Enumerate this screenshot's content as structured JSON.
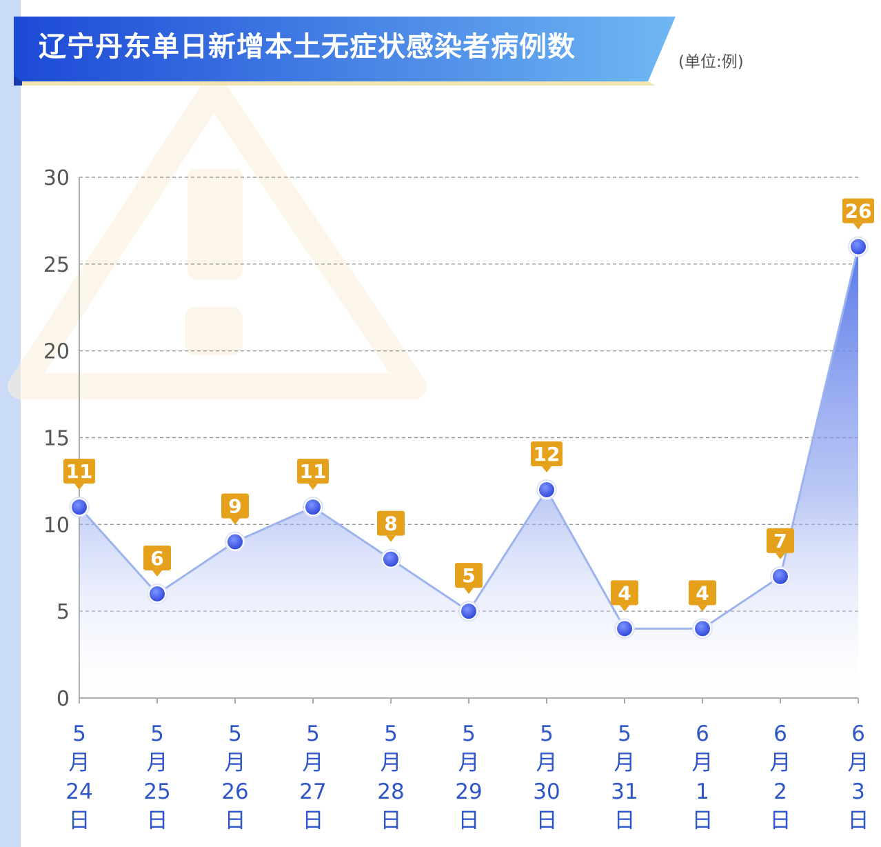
{
  "header": {
    "title": "辽宁丹东单日新增本土无症状感染者病例数",
    "unit": "(单位:例)"
  },
  "colors": {
    "line": "#9db3ee",
    "point": "#3450e0",
    "label_bg": "#e6a11c",
    "banner_start": "#1c49d6",
    "banner_end": "#6fb8f3",
    "banner_underline": "#f3e4b3",
    "watermark": "#fbeed8"
  },
  "chart_data": {
    "type": "area",
    "title": "辽宁丹东单日新增本土无症状感染者病例数",
    "unit": "(单位:例)",
    "categories": [
      [
        "5",
        "月",
        "24",
        "日"
      ],
      [
        "5",
        "月",
        "25",
        "日"
      ],
      [
        "5",
        "月",
        "26",
        "日"
      ],
      [
        "5",
        "月",
        "27",
        "日"
      ],
      [
        "5",
        "月",
        "28",
        "日"
      ],
      [
        "5",
        "月",
        "29",
        "日"
      ],
      [
        "5",
        "月",
        "30",
        "日"
      ],
      [
        "5",
        "月",
        "31",
        "日"
      ],
      [
        "6",
        "月",
        "1",
        "日"
      ],
      [
        "6",
        "月",
        "2",
        "日"
      ],
      [
        "6",
        "月",
        "3",
        "日"
      ]
    ],
    "values": [
      11,
      6,
      9,
      11,
      8,
      5,
      12,
      4,
      4,
      7,
      26
    ],
    "ylim": [
      0,
      30
    ],
    "yticks": [
      0,
      5,
      10,
      15,
      20,
      25,
      30
    ],
    "grid": true,
    "data_labels": true
  }
}
